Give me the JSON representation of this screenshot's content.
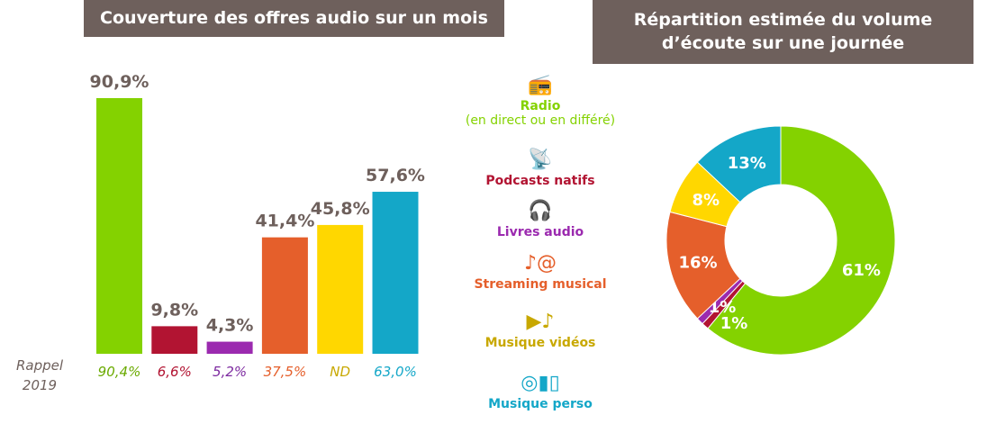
{
  "chart_data": [
    {
      "type": "bar",
      "title": "Couverture des offres audio sur un mois",
      "categories": [
        "Radio (en direct ou en différé)",
        "Podcasts natifs",
        "Livres audio",
        "Streaming musical",
        "Musique vidéos",
        "Musique perso"
      ],
      "values": [
        90.9,
        9.8,
        4.3,
        41.4,
        45.8,
        57.6
      ],
      "value_labels": [
        "90,9%",
        "9,8%",
        "4,3%",
        "41,4%",
        "45,8%",
        "57,6%"
      ],
      "reference_label": "Rappel 2019",
      "reference_values": [
        "90,4%",
        "6,6%",
        "5,2%",
        "37,5%",
        "ND",
        "63,0%"
      ],
      "colors": [
        "#84d200",
        "#b21432",
        "#9b2aaf",
        "#e55f2b",
        "#ffd700",
        "#14a7c8"
      ],
      "reference_colors": [
        "#6aaa00",
        "#b21432",
        "#7d2aa0",
        "#e55f2b",
        "#c8a800",
        "#14a7c8"
      ],
      "ylim": [
        0,
        100
      ],
      "grid": false
    },
    {
      "type": "pie",
      "donut": true,
      "title": "Répartition estimée du volume d’écoute sur une journée",
      "categories": [
        "Radio",
        "Podcasts natifs",
        "Livres audio",
        "Streaming musical",
        "Musique vidéos",
        "Musique perso"
      ],
      "values": [
        61,
        1,
        1,
        16,
        8,
        13
      ],
      "value_labels": [
        "61%",
        "1%",
        "1%",
        "16%",
        "8%",
        "13%"
      ],
      "colors": [
        "#84d200",
        "#b21432",
        "#9b2aaf",
        "#e55f2b",
        "#ffd700",
        "#14a7c8"
      ]
    }
  ],
  "legend": [
    {
      "label": "Radio",
      "sub": "(en direct ou en différé)",
      "icon": "radio-icon",
      "glyph": "📻",
      "color": "#84d200"
    },
    {
      "label": "Podcasts natifs",
      "icon": "podcast-icon",
      "glyph": "📡",
      "color": "#b21432"
    },
    {
      "label": "Livres audio",
      "icon": "headphones-icon",
      "glyph": "🎧",
      "color": "#9b2aaf"
    },
    {
      "label": "Streaming musical",
      "icon": "music-streaming-icon",
      "glyph": "♪@",
      "color": "#e55f2b"
    },
    {
      "label": "Musique vidéos",
      "icon": "music-video-icon",
      "glyph": "▶♪",
      "color": "#c8a800"
    },
    {
      "label": "Musique perso",
      "icon": "personal-music-icon",
      "glyph": "◎▮▯",
      "color": "#14a7c8"
    }
  ]
}
